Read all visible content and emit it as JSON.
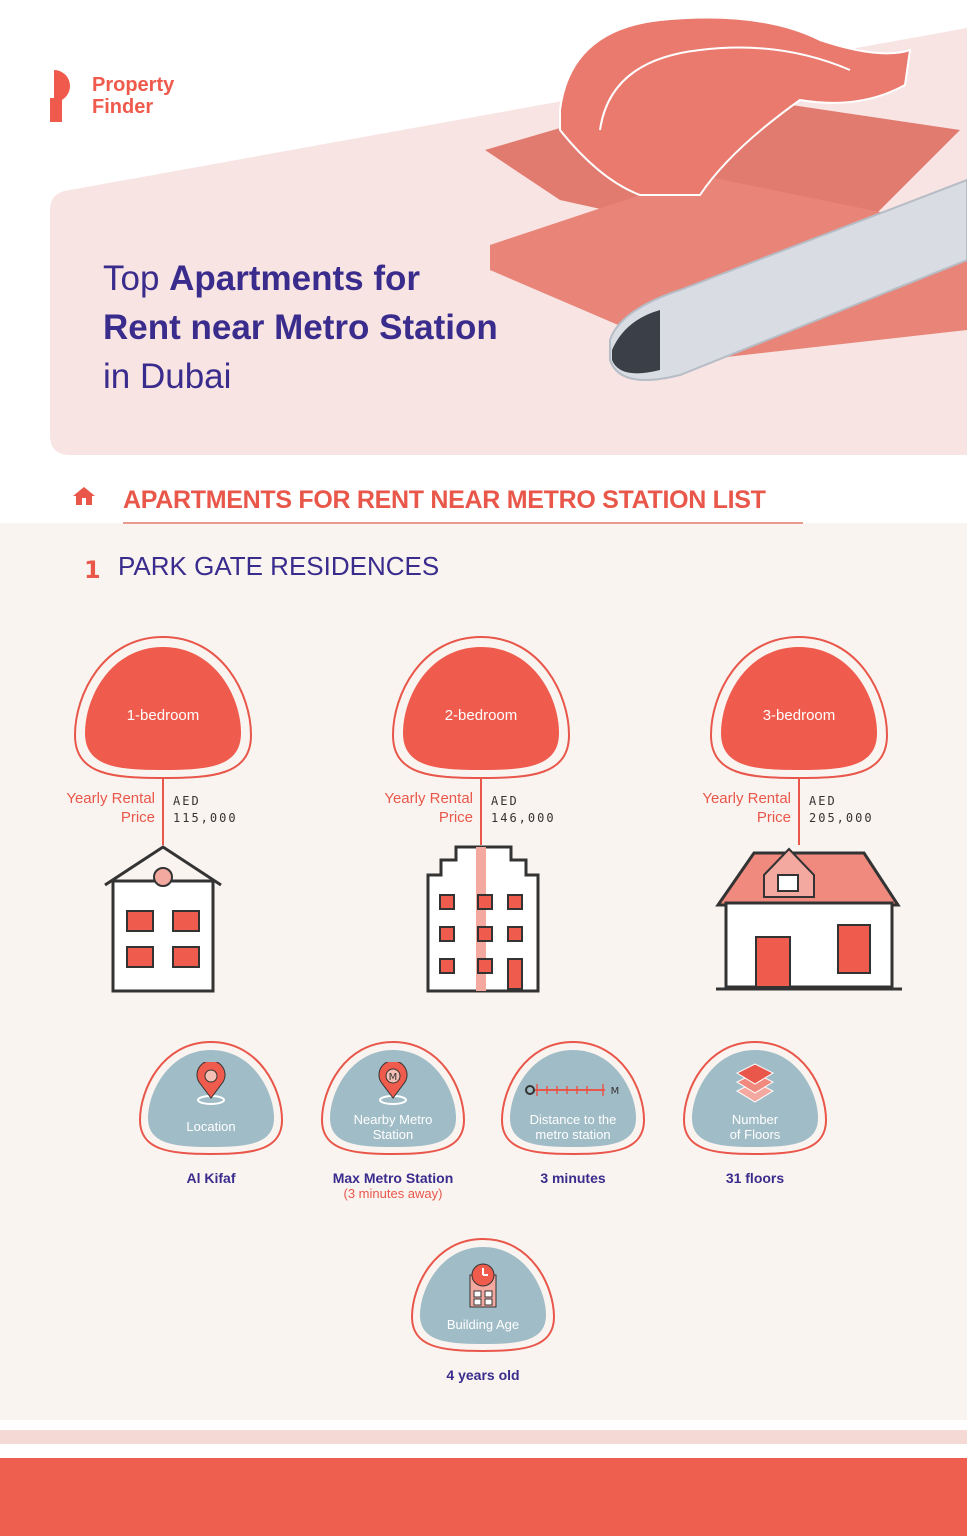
{
  "brand": {
    "name_line1": "Property",
    "name_line2": "Finder",
    "color": "#ef5a4c"
  },
  "hero": {
    "title_pre": "Top ",
    "title_bold1": "Apartments for",
    "title_bold2": "Rent near Metro Station",
    "title_post": "in Dubai"
  },
  "section": {
    "icon": "home-icon",
    "heading": "APARTMENTS FOR RENT NEAR METRO STATION LIST"
  },
  "property": {
    "number": "1",
    "name": "PARK GATE RESIDENCES"
  },
  "units": [
    {
      "label": "1-bedroom",
      "price_label_1": "Yearly Rental",
      "price_label_2": "Price",
      "currency": "AED",
      "price": "115,000"
    },
    {
      "label": "2-bedroom",
      "price_label_1": "Yearly Rental",
      "price_label_2": "Price",
      "currency": "AED",
      "price": "146,000"
    },
    {
      "label": "3-bedroom",
      "price_label_1": "Yearly Rental",
      "price_label_2": "Price",
      "currency": "AED",
      "price": "205,000"
    }
  ],
  "details": [
    {
      "icon": "location-pin-icon",
      "label_1": "Location",
      "label_2": "",
      "value": "Al Kifaf",
      "sub": ""
    },
    {
      "icon": "metro-pin-icon",
      "label_1": "Nearby Metro",
      "label_2": "Station",
      "value": "Max Metro Station",
      "sub": "(3 minutes away)"
    },
    {
      "icon": "distance-ruler-icon",
      "label_1": "Distance to the",
      "label_2": "metro station",
      "value": "3 minutes",
      "sub": ""
    },
    {
      "icon": "layers-icon",
      "label_1": "Number",
      "label_2": "of Floors",
      "value": "31 floors",
      "sub": ""
    },
    {
      "icon": "building-clock-icon",
      "label_1": "Building Age",
      "label_2": "",
      "value": "4 years old",
      "sub": ""
    }
  ],
  "colors": {
    "accent": "#ef5b4c",
    "purple": "#3a2c8c",
    "blob_blue": "#a0bcc7",
    "panel_pink": "#f8e4e2",
    "list_bg": "#faf4f1"
  }
}
